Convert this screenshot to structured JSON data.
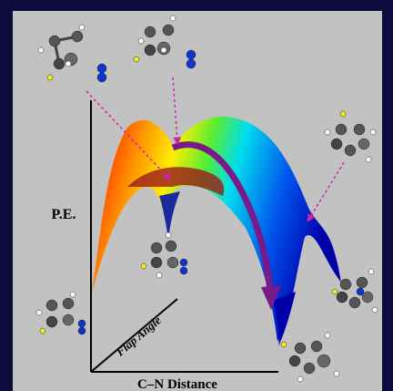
{
  "axes": {
    "y_label": "P.E.",
    "x_label": "C–N Distance",
    "depth_label": "Flap Angle"
  }
}
